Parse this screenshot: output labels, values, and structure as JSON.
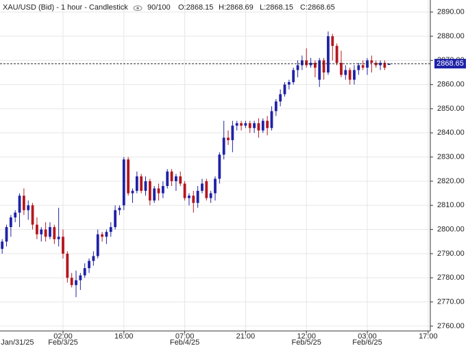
{
  "chart_data": {
    "type": "candlestick",
    "header": {
      "title": "XAU/USD (Bid) - 1 hour - Candlestick",
      "count": "90/100",
      "open": "O:2868.15",
      "high": "H:2868.69",
      "low": "L:2868.15",
      "close": "C:2868.65"
    },
    "up_color": "#1e22a6",
    "down_color": "#b3171f",
    "open": [
      2792,
      2795,
      2801,
      2805,
      2807,
      2814,
      2808,
      2810,
      2802,
      2798,
      2800,
      2797,
      2801,
      2796,
      2797,
      2790,
      2780,
      2777,
      2779,
      2781,
      2784,
      2787,
      2789,
      2798,
      2797,
      2799,
      2801,
      2808,
      2810,
      2829,
      2815,
      2816,
      2822,
      2816,
      2820,
      2812,
      2817,
      2815,
      2818,
      2824,
      2820,
      2822,
      2819,
      2813,
      2814,
      2811,
      2816,
      2820,
      2813,
      2815,
      2821,
      2831,
      2838,
      2837,
      2843,
      2844,
      2843,
      2844,
      2842,
      2844,
      2841,
      2845,
      2842,
      2849,
      2853,
      2856,
      2860,
      2861,
      2866,
      2868,
      2870,
      2868,
      2869,
      2862,
      2870,
      2865,
      2880,
      2876,
      2869,
      2864,
      2866,
      2862,
      2866,
      2868,
      2867,
      2870,
      2869,
      2868,
      2869,
      2868.15
    ],
    "high": [
      2796,
      2802,
      2806,
      2808,
      2815,
      2817,
      2812,
      2811,
      2805,
      2801,
      2803,
      2803,
      2802,
      2809,
      2800,
      2791,
      2782,
      2783,
      2782,
      2786,
      2788,
      2791,
      2800,
      2799,
      2800,
      2803,
      2810,
      2810,
      2830,
      2830,
      2817,
      2824,
      2823,
      2822,
      2821,
      2818,
      2819,
      2820,
      2825,
      2825,
      2823,
      2824,
      2820,
      2815,
      2816,
      2818,
      2821,
      2821,
      2816,
      2822,
      2832,
      2845,
      2841,
      2845,
      2845,
      2845,
      2845,
      2845,
      2845,
      2846,
      2846,
      2847,
      2851,
      2854,
      2858,
      2861,
      2862,
      2867,
      2870,
      2872,
      2875,
      2871,
      2870,
      2871,
      2871,
      2882,
      2881,
      2877,
      2874,
      2868,
      2867,
      2868,
      2869,
      2870,
      2871,
      2872,
      2870,
      2870,
      2870,
      2868.69
    ],
    "low": [
      2790,
      2793,
      2797,
      2803,
      2801,
      2806,
      2804,
      2800,
      2796,
      2795,
      2795,
      2796,
      2794,
      2793,
      2788,
      2778,
      2776,
      2772,
      2775,
      2780,
      2782,
      2785,
      2788,
      2795,
      2794,
      2797,
      2800,
      2806,
      2808,
      2814,
      2811,
      2815,
      2815,
      2814,
      2810,
      2811,
      2812,
      2813,
      2817,
      2818,
      2816,
      2818,
      2812,
      2810,
      2807,
      2809,
      2815,
      2812,
      2811,
      2812,
      2819,
      2829,
      2835,
      2832,
      2841,
      2841,
      2842,
      2840,
      2840,
      2838,
      2840,
      2839,
      2841,
      2847,
      2851,
      2855,
      2858,
      2860,
      2863,
      2866,
      2867,
      2867,
      2863,
      2859,
      2862,
      2864,
      2870,
      2868,
      2863,
      2862,
      2860,
      2860,
      2864,
      2866,
      2864,
      2865,
      2867,
      2866,
      2866,
      2868.15
    ],
    "close": [
      2795,
      2801,
      2805,
      2807,
      2814,
      2808,
      2810,
      2802,
      2798,
      2800,
      2797,
      2801,
      2796,
      2797,
      2790,
      2780,
      2777,
      2779,
      2781,
      2784,
      2787,
      2789,
      2798,
      2797,
      2799,
      2801,
      2808,
      2809,
      2829,
      2815,
      2816,
      2822,
      2816,
      2820,
      2812,
      2817,
      2815,
      2818,
      2824,
      2820,
      2822,
      2819,
      2813,
      2814,
      2811,
      2816,
      2819,
      2813,
      2815,
      2821,
      2831,
      2838,
      2837,
      2843,
      2844,
      2843,
      2844,
      2842,
      2844,
      2841,
      2845,
      2842,
      2849,
      2853,
      2856,
      2860,
      2861,
      2866,
      2868,
      2870,
      2868,
      2869,
      2867,
      2870,
      2865,
      2880,
      2876,
      2869,
      2864,
      2866,
      2862,
      2866,
      2868,
      2867,
      2870,
      2869,
      2868,
      2869,
      2867,
      2868.65
    ],
    "last_label": "2868.65",
    "xlim": [
      -0.5,
      98.5
    ],
    "xticks": [
      {
        "value": 14,
        "label": "02:00"
      },
      {
        "value": 28,
        "label": "16:00"
      },
      {
        "value": 42,
        "label": "07:00"
      },
      {
        "value": 56,
        "label": "21:00"
      },
      {
        "value": 70,
        "label": "12:00"
      },
      {
        "value": 84,
        "label": "03:00"
      },
      {
        "value": 98,
        "label": "17:00"
      }
    ],
    "date_ticks": [
      {
        "value": 3.5,
        "label": "Jan/31/25"
      },
      {
        "value": 14,
        "label": "Feb/3/25"
      },
      {
        "value": 42,
        "label": "Feb/4/25"
      },
      {
        "value": 70,
        "label": "Feb/5/25"
      },
      {
        "value": 84,
        "label": "Feb/6/25"
      }
    ],
    "ylim": [
      2758,
      2895
    ],
    "yticks": [
      {
        "value": 2760,
        "label": "2760.00"
      },
      {
        "value": 2770,
        "label": "2770.00"
      },
      {
        "value": 2780,
        "label": "2780.00"
      },
      {
        "value": 2790,
        "label": "2790.00"
      },
      {
        "value": 2800,
        "label": "2800.00"
      },
      {
        "value": 2810,
        "label": "2810.00"
      },
      {
        "value": 2820,
        "label": "2820.00"
      },
      {
        "value": 2830,
        "label": "2830.00"
      },
      {
        "value": 2840,
        "label": "2840.00"
      },
      {
        "value": 2850,
        "label": "2850.00"
      },
      {
        "value": 2860,
        "label": "2860.00"
      },
      {
        "value": 2870,
        "label": "2870.00"
      },
      {
        "value": 2880,
        "label": "2880.00"
      },
      {
        "value": 2890,
        "label": "2890.00"
      }
    ],
    "grid": true
  }
}
